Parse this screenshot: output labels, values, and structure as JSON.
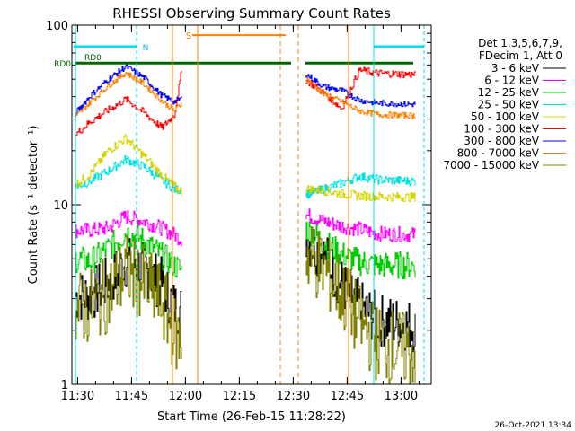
{
  "chart_data": {
    "type": "line",
    "title": "RHESSI Observing Summary Count Rates",
    "xlabel": "Start Time (26-Feb-15 11:28:22)",
    "ylabel": "Count Rate (s⁻¹ detector⁻¹)",
    "yscale": "log",
    "ylim": [
      1,
      100
    ],
    "xlim_minutes": [
      0,
      100
    ],
    "x_unit": "minutes after start time",
    "x_ticks": [
      {
        "label": "11:30",
        "x": 1.6
      },
      {
        "label": "11:45",
        "x": 16.6
      },
      {
        "label": "12:00",
        "x": 31.6
      },
      {
        "label": "12:15",
        "x": 46.6
      },
      {
        "label": "12:30",
        "x": 61.6
      },
      {
        "label": "12:45",
        "x": 76.6
      },
      {
        "label": "13:00",
        "x": 91.6
      }
    ],
    "y_ticks": [
      {
        "label": "1",
        "y": 1
      },
      {
        "label": "10",
        "y": 10
      },
      {
        "label": "100",
        "y": 100
      }
    ],
    "legend": {
      "position": "right",
      "header": [
        "Det 1,3,5,6,7,9,",
        "FDecim 1, Att 0"
      ],
      "colors": [
        "#000000",
        "#ff00ff",
        "#00cc00",
        "#00e0e0",
        "#d4d400",
        "#ff0000",
        "#0000ff",
        "#ff8000",
        "#808000"
      ]
    },
    "series": [
      {
        "name": "3 - 6 keV",
        "color": "#000000",
        "x": [
          1,
          5,
          10,
          15,
          20,
          25,
          28.5,
          30.5,
          65,
          70,
          75,
          80,
          85,
          95.5
        ],
        "y": [
          3.1,
          3.1,
          3.7,
          4.8,
          4.4,
          3.6,
          2.7,
          2.6,
          6.6,
          5.2,
          3.6,
          2.7,
          2.3,
          2.1
        ]
      },
      {
        "name": "6 - 12 keV",
        "color": "#ff00ff",
        "x": [
          1,
          5,
          10,
          15,
          20,
          25,
          28.5,
          30.5,
          65,
          70,
          75,
          80,
          85,
          95.5
        ],
        "y": [
          7.2,
          7.2,
          7.4,
          8.6,
          8.1,
          7.4,
          6.8,
          6.4,
          8.8,
          8.1,
          7.6,
          7.3,
          6.9,
          6.8
        ]
      },
      {
        "name": "12 - 25 keV",
        "color": "#00cc00",
        "x": [
          1,
          5,
          10,
          15,
          20,
          25,
          28.5,
          30.5,
          65,
          70,
          75,
          80,
          85,
          95.5
        ],
        "y": [
          5.0,
          4.8,
          5.7,
          7.0,
          6.3,
          5.2,
          4.6,
          4.3,
          7.4,
          6.2,
          5.3,
          4.8,
          4.6,
          4.6
        ]
      },
      {
        "name": "25 - 50 keV",
        "color": "#00e0e0",
        "x": [
          1,
          5,
          10,
          15,
          20,
          25,
          28.5,
          30.5,
          65,
          70,
          75,
          80,
          85,
          95.5
        ],
        "y": [
          12.6,
          13.5,
          15.4,
          17.9,
          16.3,
          13.7,
          12.2,
          12.0,
          11.4,
          12.2,
          13.2,
          14.4,
          13.8,
          13.5
        ]
      },
      {
        "name": "50 - 100 keV",
        "color": "#d4d400",
        "x": [
          1,
          5,
          10,
          15,
          20,
          25,
          28.5,
          30.5,
          65,
          70,
          75,
          80,
          85,
          95.5
        ],
        "y": [
          13.0,
          14.8,
          19.9,
          23.5,
          18.7,
          14.6,
          12.6,
          11.9,
          12.3,
          12.0,
          11.5,
          11.2,
          11.1,
          11.0
        ]
      },
      {
        "name": "100 - 300 keV",
        "color": "#ff0000",
        "x": [
          1,
          5,
          10,
          15,
          20,
          25,
          28.5,
          30.5,
          65,
          70,
          75,
          80,
          85,
          95.5
        ],
        "y": [
          24.6,
          28.9,
          33.6,
          38.7,
          32.6,
          26.8,
          31.7,
          55.5,
          49.6,
          42.1,
          34.4,
          56.2,
          54.0,
          53.1
        ]
      },
      {
        "name": "300 - 800 keV",
        "color": "#0000ff",
        "x": [
          1,
          5,
          10,
          15,
          20,
          25,
          28.5,
          30.5,
          65,
          70,
          75,
          80,
          85,
          95.5
        ],
        "y": [
          32.3,
          40.3,
          49.7,
          58.9,
          51.1,
          40.5,
          37.5,
          39.2,
          53.7,
          45.4,
          43.3,
          38.2,
          36.8,
          36.2
        ]
      },
      {
        "name": "800 - 7000 keV",
        "color": "#ff8000",
        "x": [
          1,
          5,
          10,
          15,
          20,
          25,
          28.5,
          30.5,
          65,
          70,
          75,
          80,
          85,
          95.5
        ],
        "y": [
          30.8,
          37.2,
          45.9,
          54.4,
          47.0,
          37.8,
          33.5,
          36.5,
          51.1,
          41.4,
          37.4,
          33.3,
          31.8,
          31.3
        ]
      },
      {
        "name": "7000 - 15000 keV",
        "color": "#808000",
        "x": [
          1,
          5,
          10,
          15,
          20,
          25,
          28.5,
          30.5,
          65,
          70,
          75,
          80,
          85,
          95.5
        ],
        "y": [
          2.6,
          2.7,
          3.2,
          4.3,
          3.6,
          2.9,
          1.9,
          1.7,
          5.4,
          4.4,
          3.2,
          2.2,
          1.7,
          1.5
        ]
      }
    ],
    "annotations": [
      {
        "text": "RD0",
        "color": "#006600"
      },
      {
        "text": "RD0",
        "color": "#006600"
      },
      {
        "text": "N",
        "color": "#00bfff"
      },
      {
        "text": "S",
        "color": "#ff8000"
      }
    ],
    "timestamp": "26-Oct-2021 13:34"
  }
}
